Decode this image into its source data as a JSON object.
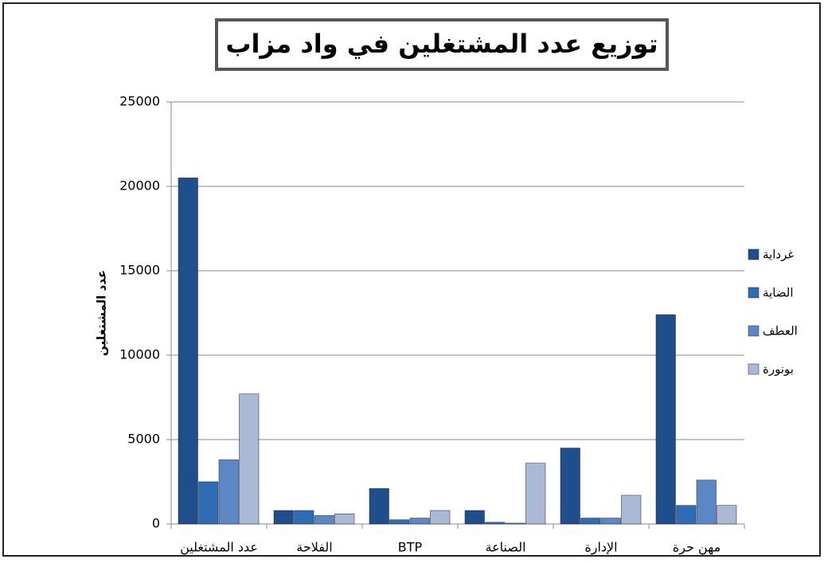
{
  "chart_data": {
    "type": "bar",
    "title": "توزيع عدد المشتغلين في واد مزاب",
    "y_label": "عدد المشتغلين",
    "categories": [
      "عدد المشتغلين",
      "الفلاحة",
      "BTP",
      "الصناعة",
      "الإدارة",
      "مهن حرة"
    ],
    "series": [
      {
        "name": "غرداية",
        "color": "#1f4e8c",
        "values": [
          20500,
          800,
          2100,
          800,
          4500,
          12400
        ]
      },
      {
        "name": "الضاية",
        "color": "#2e6db3",
        "values": [
          2500,
          800,
          250,
          100,
          350,
          1100
        ]
      },
      {
        "name": "العطف",
        "color": "#5b87c5",
        "values": [
          3800,
          500,
          350,
          50,
          350,
          2600
        ]
      },
      {
        "name": "بونورة",
        "color": "#a9b9d6",
        "values": [
          7700,
          600,
          800,
          3600,
          1700,
          1100
        ]
      }
    ],
    "ylim": [
      0,
      25000
    ],
    "yticks": [
      0,
      5000,
      10000,
      15000,
      20000,
      25000
    ],
    "grid": true,
    "legend": "right"
  }
}
